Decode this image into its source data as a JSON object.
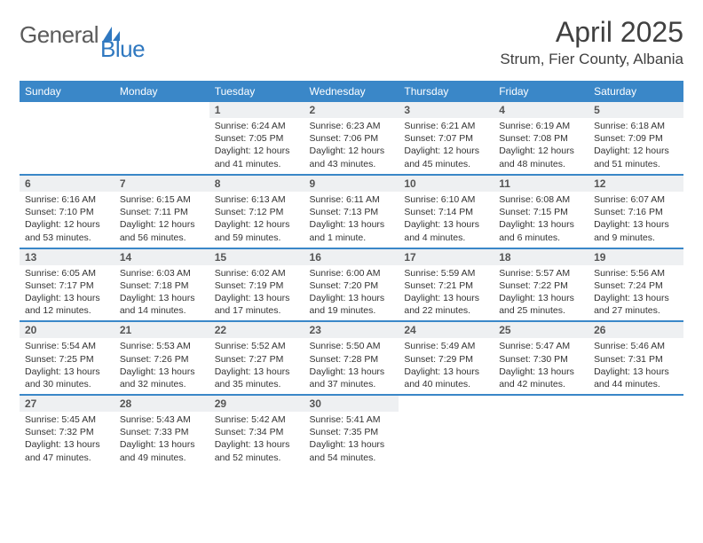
{
  "brand": {
    "part1": "General",
    "part2": "Blue"
  },
  "title": "April 2025",
  "location": "Strum, Fier County, Albania",
  "colors": {
    "header_bg": "#3a87c8",
    "header_text": "#ffffff",
    "daynum_bg": "#eef0f2",
    "border": "#3a87c8",
    "brand_gray": "#5b5b5b",
    "brand_blue": "#2f78c0"
  },
  "typography": {
    "title_fontsize": 32,
    "location_fontsize": 17,
    "header_fontsize": 12,
    "daynum_fontsize": 12,
    "body_fontsize": 10.5
  },
  "weekdays": [
    "Sunday",
    "Monday",
    "Tuesday",
    "Wednesday",
    "Thursday",
    "Friday",
    "Saturday"
  ],
  "weeks": [
    [
      null,
      null,
      {
        "n": "1",
        "sr": "Sunrise: 6:24 AM",
        "ss": "Sunset: 7:05 PM",
        "d1": "Daylight: 12 hours",
        "d2": "and 41 minutes."
      },
      {
        "n": "2",
        "sr": "Sunrise: 6:23 AM",
        "ss": "Sunset: 7:06 PM",
        "d1": "Daylight: 12 hours",
        "d2": "and 43 minutes."
      },
      {
        "n": "3",
        "sr": "Sunrise: 6:21 AM",
        "ss": "Sunset: 7:07 PM",
        "d1": "Daylight: 12 hours",
        "d2": "and 45 minutes."
      },
      {
        "n": "4",
        "sr": "Sunrise: 6:19 AM",
        "ss": "Sunset: 7:08 PM",
        "d1": "Daylight: 12 hours",
        "d2": "and 48 minutes."
      },
      {
        "n": "5",
        "sr": "Sunrise: 6:18 AM",
        "ss": "Sunset: 7:09 PM",
        "d1": "Daylight: 12 hours",
        "d2": "and 51 minutes."
      }
    ],
    [
      {
        "n": "6",
        "sr": "Sunrise: 6:16 AM",
        "ss": "Sunset: 7:10 PM",
        "d1": "Daylight: 12 hours",
        "d2": "and 53 minutes."
      },
      {
        "n": "7",
        "sr": "Sunrise: 6:15 AM",
        "ss": "Sunset: 7:11 PM",
        "d1": "Daylight: 12 hours",
        "d2": "and 56 minutes."
      },
      {
        "n": "8",
        "sr": "Sunrise: 6:13 AM",
        "ss": "Sunset: 7:12 PM",
        "d1": "Daylight: 12 hours",
        "d2": "and 59 minutes."
      },
      {
        "n": "9",
        "sr": "Sunrise: 6:11 AM",
        "ss": "Sunset: 7:13 PM",
        "d1": "Daylight: 13 hours",
        "d2": "and 1 minute."
      },
      {
        "n": "10",
        "sr": "Sunrise: 6:10 AM",
        "ss": "Sunset: 7:14 PM",
        "d1": "Daylight: 13 hours",
        "d2": "and 4 minutes."
      },
      {
        "n": "11",
        "sr": "Sunrise: 6:08 AM",
        "ss": "Sunset: 7:15 PM",
        "d1": "Daylight: 13 hours",
        "d2": "and 6 minutes."
      },
      {
        "n": "12",
        "sr": "Sunrise: 6:07 AM",
        "ss": "Sunset: 7:16 PM",
        "d1": "Daylight: 13 hours",
        "d2": "and 9 minutes."
      }
    ],
    [
      {
        "n": "13",
        "sr": "Sunrise: 6:05 AM",
        "ss": "Sunset: 7:17 PM",
        "d1": "Daylight: 13 hours",
        "d2": "and 12 minutes."
      },
      {
        "n": "14",
        "sr": "Sunrise: 6:03 AM",
        "ss": "Sunset: 7:18 PM",
        "d1": "Daylight: 13 hours",
        "d2": "and 14 minutes."
      },
      {
        "n": "15",
        "sr": "Sunrise: 6:02 AM",
        "ss": "Sunset: 7:19 PM",
        "d1": "Daylight: 13 hours",
        "d2": "and 17 minutes."
      },
      {
        "n": "16",
        "sr": "Sunrise: 6:00 AM",
        "ss": "Sunset: 7:20 PM",
        "d1": "Daylight: 13 hours",
        "d2": "and 19 minutes."
      },
      {
        "n": "17",
        "sr": "Sunrise: 5:59 AM",
        "ss": "Sunset: 7:21 PM",
        "d1": "Daylight: 13 hours",
        "d2": "and 22 minutes."
      },
      {
        "n": "18",
        "sr": "Sunrise: 5:57 AM",
        "ss": "Sunset: 7:22 PM",
        "d1": "Daylight: 13 hours",
        "d2": "and 25 minutes."
      },
      {
        "n": "19",
        "sr": "Sunrise: 5:56 AM",
        "ss": "Sunset: 7:24 PM",
        "d1": "Daylight: 13 hours",
        "d2": "and 27 minutes."
      }
    ],
    [
      {
        "n": "20",
        "sr": "Sunrise: 5:54 AM",
        "ss": "Sunset: 7:25 PM",
        "d1": "Daylight: 13 hours",
        "d2": "and 30 minutes."
      },
      {
        "n": "21",
        "sr": "Sunrise: 5:53 AM",
        "ss": "Sunset: 7:26 PM",
        "d1": "Daylight: 13 hours",
        "d2": "and 32 minutes."
      },
      {
        "n": "22",
        "sr": "Sunrise: 5:52 AM",
        "ss": "Sunset: 7:27 PM",
        "d1": "Daylight: 13 hours",
        "d2": "and 35 minutes."
      },
      {
        "n": "23",
        "sr": "Sunrise: 5:50 AM",
        "ss": "Sunset: 7:28 PM",
        "d1": "Daylight: 13 hours",
        "d2": "and 37 minutes."
      },
      {
        "n": "24",
        "sr": "Sunrise: 5:49 AM",
        "ss": "Sunset: 7:29 PM",
        "d1": "Daylight: 13 hours",
        "d2": "and 40 minutes."
      },
      {
        "n": "25",
        "sr": "Sunrise: 5:47 AM",
        "ss": "Sunset: 7:30 PM",
        "d1": "Daylight: 13 hours",
        "d2": "and 42 minutes."
      },
      {
        "n": "26",
        "sr": "Sunrise: 5:46 AM",
        "ss": "Sunset: 7:31 PM",
        "d1": "Daylight: 13 hours",
        "d2": "and 44 minutes."
      }
    ],
    [
      {
        "n": "27",
        "sr": "Sunrise: 5:45 AM",
        "ss": "Sunset: 7:32 PM",
        "d1": "Daylight: 13 hours",
        "d2": "and 47 minutes."
      },
      {
        "n": "28",
        "sr": "Sunrise: 5:43 AM",
        "ss": "Sunset: 7:33 PM",
        "d1": "Daylight: 13 hours",
        "d2": "and 49 minutes."
      },
      {
        "n": "29",
        "sr": "Sunrise: 5:42 AM",
        "ss": "Sunset: 7:34 PM",
        "d1": "Daylight: 13 hours",
        "d2": "and 52 minutes."
      },
      {
        "n": "30",
        "sr": "Sunrise: 5:41 AM",
        "ss": "Sunset: 7:35 PM",
        "d1": "Daylight: 13 hours",
        "d2": "and 54 minutes."
      },
      null,
      null,
      null
    ]
  ]
}
